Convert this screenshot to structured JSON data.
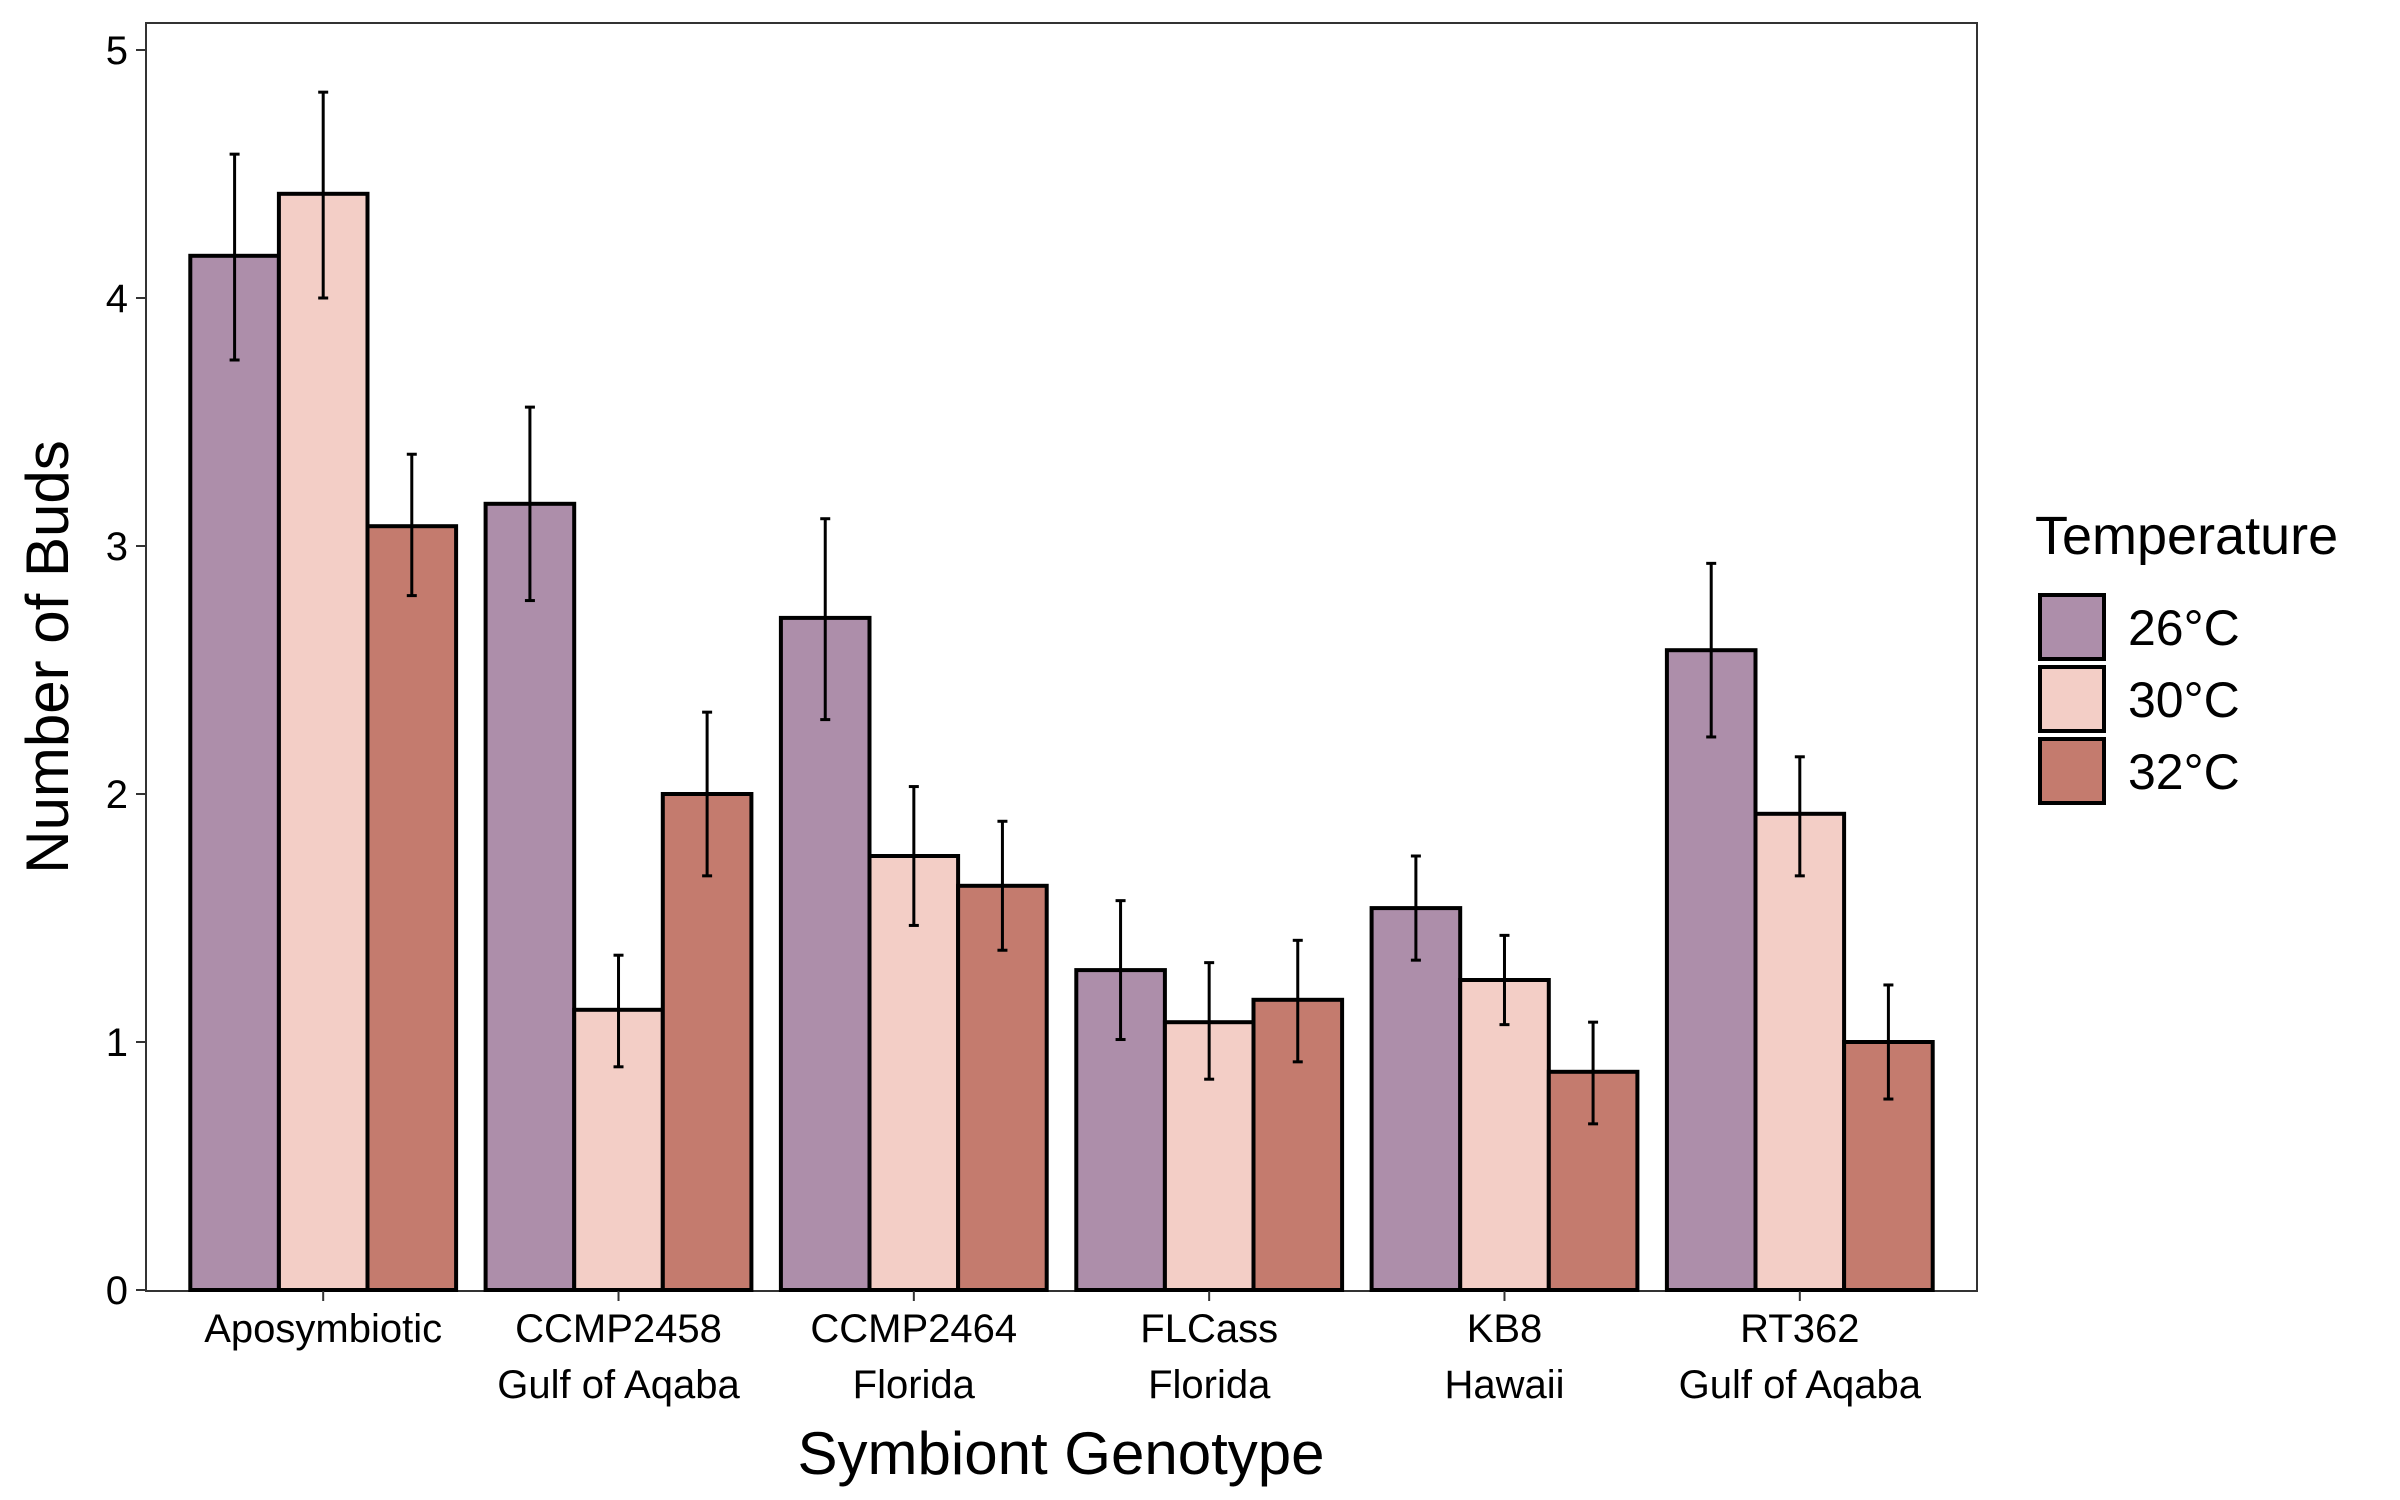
{
  "chart_data": {
    "type": "bar",
    "xlabel": "Symbiont Genotype",
    "ylabel": "Number of Buds",
    "ylim": [
      0,
      5
    ],
    "yticks": [
      0,
      1,
      2,
      3,
      4,
      5
    ],
    "grid": false,
    "legend_position": "right",
    "legend_title": "Temperature",
    "categories": [
      [
        "Aposymbiotic"
      ],
      [
        "CCMP2458",
        "Gulf of Aqaba"
      ],
      [
        "CCMP2464",
        "Florida"
      ],
      [
        "FLCass",
        "Florida"
      ],
      [
        "KB8",
        "Hawaii"
      ],
      [
        "RT362",
        "Gulf of Aqaba"
      ]
    ],
    "series": [
      {
        "name": "26°C",
        "color": "#AD8EAA",
        "values": [
          4.17,
          3.17,
          2.71,
          1.29,
          1.54,
          2.58
        ],
        "error_low": [
          3.75,
          2.78,
          2.3,
          1.01,
          1.33,
          2.23
        ],
        "error_high": [
          4.58,
          3.56,
          3.11,
          1.57,
          1.75,
          2.93
        ]
      },
      {
        "name": "30°C",
        "color": "#F3CEC6",
        "values": [
          4.42,
          1.13,
          1.75,
          1.08,
          1.25,
          1.92
        ],
        "error_low": [
          4.0,
          0.9,
          1.47,
          0.85,
          1.07,
          1.67
        ],
        "error_high": [
          4.83,
          1.35,
          2.03,
          1.32,
          1.43,
          2.15
        ]
      },
      {
        "name": "32°C",
        "color": "#C47B6E",
        "values": [
          3.08,
          2.0,
          1.63,
          1.17,
          0.88,
          1.0
        ],
        "error_low": [
          2.8,
          1.67,
          1.37,
          0.92,
          0.67,
          0.77
        ],
        "error_high": [
          3.37,
          2.33,
          1.89,
          1.41,
          1.08,
          1.23
        ]
      }
    ]
  }
}
